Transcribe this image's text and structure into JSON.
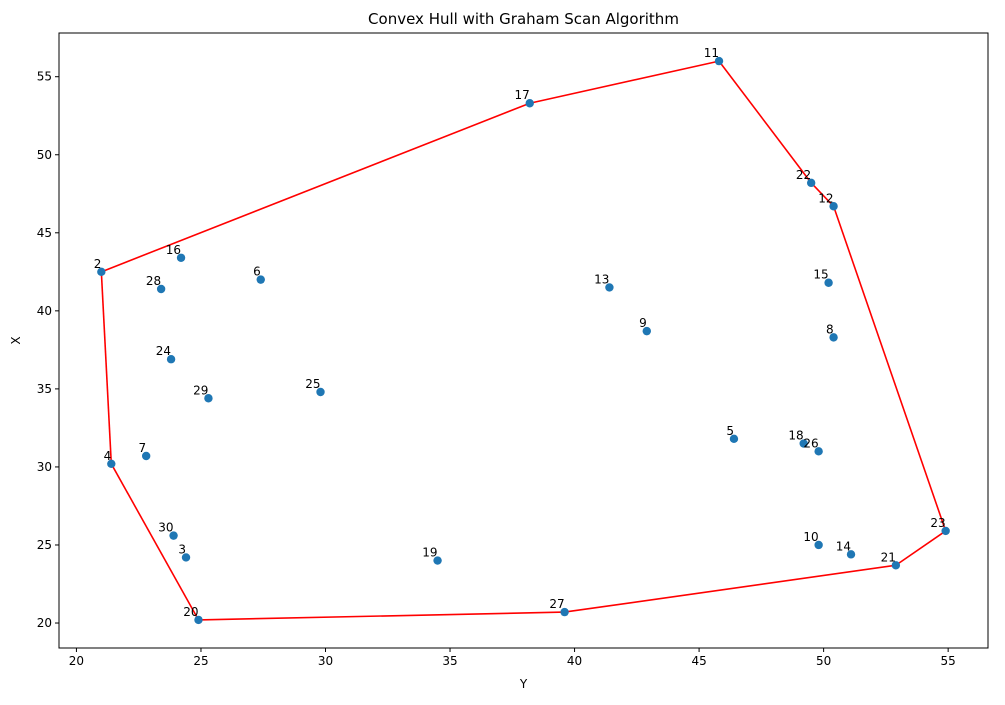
{
  "chart_data": {
    "type": "scatter",
    "title": "Convex Hull with Graham Scan Algorithm",
    "xlabel": "Y",
    "ylabel": "X",
    "xlim": [
      19.3,
      56.6
    ],
    "ylim": [
      18.4,
      57.8
    ],
    "xticks": [
      20,
      25,
      30,
      35,
      40,
      45,
      50,
      55
    ],
    "yticks": [
      20,
      25,
      30,
      35,
      40,
      45,
      50,
      55
    ],
    "grid": false,
    "point_color": "#1f77b4",
    "hull_color": "#ff0000",
    "points": [
      {
        "label": "2",
        "x": 21.0,
        "y": 42.5
      },
      {
        "label": "3",
        "x": 24.4,
        "y": 24.2
      },
      {
        "label": "4",
        "x": 21.4,
        "y": 30.2
      },
      {
        "label": "5",
        "x": 46.4,
        "y": 31.8
      },
      {
        "label": "6",
        "x": 27.4,
        "y": 42.0
      },
      {
        "label": "7",
        "x": 22.8,
        "y": 30.7
      },
      {
        "label": "8",
        "x": 50.4,
        "y": 38.3
      },
      {
        "label": "9",
        "x": 42.9,
        "y": 38.7
      },
      {
        "label": "10",
        "x": 49.8,
        "y": 25.0
      },
      {
        "label": "11",
        "x": 45.8,
        "y": 56.0
      },
      {
        "label": "12",
        "x": 50.4,
        "y": 46.7
      },
      {
        "label": "13",
        "x": 41.4,
        "y": 41.5
      },
      {
        "label": "14",
        "x": 51.1,
        "y": 24.4
      },
      {
        "label": "15",
        "x": 50.2,
        "y": 41.8
      },
      {
        "label": "16",
        "x": 24.2,
        "y": 43.4
      },
      {
        "label": "17",
        "x": 38.2,
        "y": 53.3
      },
      {
        "label": "18",
        "x": 49.2,
        "y": 31.5
      },
      {
        "label": "19",
        "x": 34.5,
        "y": 24.0
      },
      {
        "label": "20",
        "x": 24.9,
        "y": 20.2
      },
      {
        "label": "21",
        "x": 52.9,
        "y": 23.7
      },
      {
        "label": "22",
        "x": 49.5,
        "y": 48.2
      },
      {
        "label": "23",
        "x": 54.9,
        "y": 25.9
      },
      {
        "label": "24",
        "x": 23.8,
        "y": 36.9
      },
      {
        "label": "25",
        "x": 29.8,
        "y": 34.8
      },
      {
        "label": "26",
        "x": 49.8,
        "y": 31.0
      },
      {
        "label": "27",
        "x": 39.6,
        "y": 20.7
      },
      {
        "label": "28",
        "x": 23.4,
        "y": 41.4
      },
      {
        "label": "29",
        "x": 25.3,
        "y": 34.4
      },
      {
        "label": "30",
        "x": 23.9,
        "y": 25.6
      }
    ],
    "hull": [
      "2",
      "17",
      "11",
      "22",
      "12",
      "23",
      "21",
      "27",
      "20",
      "4",
      "2"
    ]
  }
}
